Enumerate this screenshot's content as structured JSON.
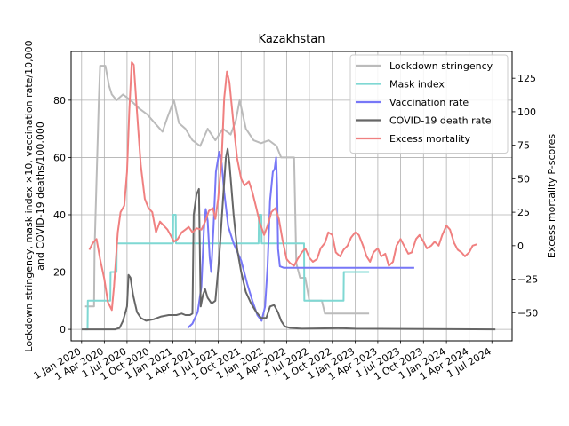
{
  "chart_data": {
    "type": "line",
    "title": "Kazakhstan",
    "ylabel_left": "Lockdown stringency, mask index ×10, vaccination rate/10,000\nand COVID-19 deaths/100,000",
    "ylabel_right": "Excess mortality P-scores",
    "ylim_left": [
      -4,
      97
    ],
    "ylim_right": [
      -71,
      145
    ],
    "yticks_left": [
      0,
      20,
      40,
      60,
      80
    ],
    "yticks_right": [
      -50,
      -25,
      0,
      25,
      50,
      75,
      100,
      125
    ],
    "ytick_labels_right": [
      "−50",
      "−25",
      "0",
      "25",
      "50",
      "75",
      "100",
      "125"
    ],
    "xlim": [
      "2019-11-20",
      "2024-09-20"
    ],
    "x_ticks": [
      {
        "date": "2020-01-01",
        "label": "1 Jan 2020"
      },
      {
        "date": "2020-04-01",
        "label": "1 Apr 2020"
      },
      {
        "date": "2020-07-01",
        "label": "1 Jul 2020"
      },
      {
        "date": "2020-10-01",
        "label": "1 Oct 2020"
      },
      {
        "date": "2021-01-01",
        "label": "1 Jan 2021"
      },
      {
        "date": "2021-04-01",
        "label": "1 Apr 2021"
      },
      {
        "date": "2021-07-01",
        "label": "1 Jul 2021"
      },
      {
        "date": "2021-10-01",
        "label": "1 Oct 2021"
      },
      {
        "date": "2022-01-01",
        "label": "1 Jan 2022"
      },
      {
        "date": "2022-04-01",
        "label": "1 Apr 2022"
      },
      {
        "date": "2022-07-01",
        "label": "1 Jul 2022"
      },
      {
        "date": "2022-10-01",
        "label": "1 Oct 2022"
      },
      {
        "date": "2023-01-01",
        "label": "1 Jan 2023"
      },
      {
        "date": "2023-04-01",
        "label": "1 Apr 2023"
      },
      {
        "date": "2023-07-01",
        "label": "1 Jul 2023"
      },
      {
        "date": "2023-10-01",
        "label": "1 Oct 2023"
      },
      {
        "date": "2024-01-01",
        "label": "1 Jan 2024"
      },
      {
        "date": "2024-04-01",
        "label": "1 Apr 2024"
      },
      {
        "date": "2024-07-01",
        "label": "1 Jul 2024"
      }
    ],
    "grid": true,
    "legend_position": "top-right",
    "series": [
      {
        "name": "Lockdown stringency",
        "axis": "left",
        "color": "#bbbbbb",
        "points": [
          [
            "2020-01-15",
            8
          ],
          [
            "2020-02-20",
            8
          ],
          [
            "2020-02-22",
            28
          ],
          [
            "2020-03-10",
            80
          ],
          [
            "2020-03-15",
            92
          ],
          [
            "2020-04-05",
            92
          ],
          [
            "2020-04-20",
            85
          ],
          [
            "2020-05-01",
            82
          ],
          [
            "2020-05-20",
            80
          ],
          [
            "2020-06-15",
            82
          ],
          [
            "2020-07-15",
            80
          ],
          [
            "2020-08-20",
            77
          ],
          [
            "2020-09-20",
            75
          ],
          [
            "2020-10-20",
            72
          ],
          [
            "2020-11-20",
            69
          ],
          [
            "2020-12-10",
            74
          ],
          [
            "2021-01-05",
            80
          ],
          [
            "2021-01-25",
            72
          ],
          [
            "2021-02-20",
            70
          ],
          [
            "2021-03-20",
            66
          ],
          [
            "2021-04-20",
            64
          ],
          [
            "2021-05-20",
            70
          ],
          [
            "2021-06-20",
            66
          ],
          [
            "2021-07-20",
            70
          ],
          [
            "2021-08-20",
            68
          ],
          [
            "2021-09-10",
            73
          ],
          [
            "2021-09-25",
            80
          ],
          [
            "2021-10-20",
            70
          ],
          [
            "2021-11-20",
            66
          ],
          [
            "2021-12-20",
            65
          ],
          [
            "2022-01-20",
            66
          ],
          [
            "2022-02-20",
            64
          ],
          [
            "2022-03-10",
            60
          ],
          [
            "2022-04-15",
            60
          ],
          [
            "2022-05-01",
            60
          ],
          [
            "2022-05-10",
            23
          ],
          [
            "2022-05-25",
            18
          ],
          [
            "2022-06-15",
            18
          ],
          [
            "2022-07-01",
            10
          ],
          [
            "2022-08-20",
            10
          ],
          [
            "2022-09-01",
            5.5
          ],
          [
            "2023-02-25",
            5.5
          ]
        ]
      },
      {
        "name": "Mask index",
        "axis": "left",
        "color": "#7fd8d3",
        "points": [
          [
            "2020-01-15",
            0
          ],
          [
            "2020-01-25",
            0
          ],
          [
            "2020-01-26",
            10
          ],
          [
            "2020-04-25",
            10
          ],
          [
            "2020-04-26",
            20
          ],
          [
            "2020-05-20",
            20
          ],
          [
            "2020-05-21",
            30
          ],
          [
            "2021-01-01",
            30
          ],
          [
            "2021-01-02",
            40
          ],
          [
            "2021-01-12",
            40
          ],
          [
            "2021-01-13",
            30
          ],
          [
            "2021-12-10",
            30
          ],
          [
            "2021-12-11",
            40
          ],
          [
            "2021-12-21",
            40
          ],
          [
            "2021-12-22",
            30
          ],
          [
            "2022-06-10",
            30
          ],
          [
            "2022-06-11",
            10
          ],
          [
            "2022-11-15",
            10
          ],
          [
            "2022-11-16",
            20
          ],
          [
            "2023-02-25",
            20
          ]
        ]
      },
      {
        "name": "Vaccination rate",
        "axis": "left",
        "color": "#7777f7",
        "points": [
          [
            "2021-03-01",
            0.5
          ],
          [
            "2021-03-20",
            2
          ],
          [
            "2021-04-10",
            6
          ],
          [
            "2021-04-25",
            15
          ],
          [
            "2021-05-05",
            35
          ],
          [
            "2021-05-12",
            42
          ],
          [
            "2021-05-20",
            38
          ],
          [
            "2021-05-28",
            25
          ],
          [
            "2021-06-03",
            20
          ],
          [
            "2021-06-12",
            35
          ],
          [
            "2021-06-22",
            55
          ],
          [
            "2021-07-05",
            62
          ],
          [
            "2021-07-15",
            58
          ],
          [
            "2021-07-25",
            48
          ],
          [
            "2021-08-10",
            36
          ],
          [
            "2021-09-01",
            30
          ],
          [
            "2021-10-01",
            24
          ],
          [
            "2021-10-25",
            16
          ],
          [
            "2021-11-15",
            10
          ],
          [
            "2021-12-05",
            5
          ],
          [
            "2021-12-22",
            3
          ],
          [
            "2022-01-05",
            8
          ],
          [
            "2022-01-15",
            22
          ],
          [
            "2022-01-25",
            45
          ],
          [
            "2022-02-05",
            55
          ],
          [
            "2022-02-12",
            56
          ],
          [
            "2022-02-18",
            60
          ],
          [
            "2022-02-22",
            50
          ],
          [
            "2022-02-26",
            28
          ],
          [
            "2022-03-05",
            22
          ],
          [
            "2022-03-20",
            21.5
          ],
          [
            "2023-08-25",
            21.5
          ]
        ]
      },
      {
        "name": "COVID-19 death rate",
        "axis": "left",
        "color": "#666666",
        "points": [
          [
            "2020-01-01",
            0
          ],
          [
            "2020-05-15",
            0
          ],
          [
            "2020-06-01",
            0.5
          ],
          [
            "2020-06-15",
            3
          ],
          [
            "2020-06-25",
            6
          ],
          [
            "2020-07-01",
            8
          ],
          [
            "2020-07-07",
            19
          ],
          [
            "2020-07-15",
            18
          ],
          [
            "2020-07-25",
            12
          ],
          [
            "2020-08-10",
            6
          ],
          [
            "2020-08-25",
            4
          ],
          [
            "2020-09-15",
            3
          ],
          [
            "2020-10-15",
            3.5
          ],
          [
            "2020-11-15",
            4.5
          ],
          [
            "2020-12-15",
            5
          ],
          [
            "2021-01-15",
            5
          ],
          [
            "2021-02-05",
            5.5
          ],
          [
            "2021-02-20",
            5
          ],
          [
            "2021-03-10",
            5
          ],
          [
            "2021-03-20",
            5.5
          ],
          [
            "2021-03-25",
            40
          ],
          [
            "2021-04-05",
            47
          ],
          [
            "2021-04-15",
            49
          ],
          [
            "2021-04-22",
            8
          ],
          [
            "2021-05-01",
            12
          ],
          [
            "2021-05-10",
            14
          ],
          [
            "2021-05-20",
            11
          ],
          [
            "2021-06-05",
            9
          ],
          [
            "2021-06-20",
            10
          ],
          [
            "2021-07-05",
            25
          ],
          [
            "2021-07-20",
            45
          ],
          [
            "2021-08-01",
            60
          ],
          [
            "2021-08-08",
            63
          ],
          [
            "2021-08-15",
            58
          ],
          [
            "2021-09-01",
            40
          ],
          [
            "2021-09-15",
            28
          ],
          [
            "2021-10-01",
            20
          ],
          [
            "2021-10-20",
            13
          ],
          [
            "2021-11-10",
            9
          ],
          [
            "2021-12-01",
            6
          ],
          [
            "2021-12-20",
            4
          ],
          [
            "2022-01-10",
            4
          ],
          [
            "2022-01-25",
            8
          ],
          [
            "2022-02-10",
            8.5
          ],
          [
            "2022-02-25",
            6
          ],
          [
            "2022-03-10",
            3
          ],
          [
            "2022-03-25",
            1
          ],
          [
            "2022-04-15",
            0.5
          ],
          [
            "2022-06-01",
            0.2
          ],
          [
            "2022-11-01",
            0.4
          ],
          [
            "2023-01-01",
            0.2
          ],
          [
            "2024-07-15",
            0
          ]
        ]
      },
      {
        "name": "Excess mortality",
        "axis": "right",
        "color": "#f08080",
        "points": [
          [
            "2020-02-01",
            -3
          ],
          [
            "2020-02-15",
            2
          ],
          [
            "2020-03-01",
            5
          ],
          [
            "2020-03-15",
            -10
          ],
          [
            "2020-04-01",
            -25
          ],
          [
            "2020-04-15",
            -42
          ],
          [
            "2020-05-01",
            -48
          ],
          [
            "2020-05-10",
            -30
          ],
          [
            "2020-05-25",
            10
          ],
          [
            "2020-06-05",
            25
          ],
          [
            "2020-06-20",
            30
          ],
          [
            "2020-07-01",
            55
          ],
          [
            "2020-07-10",
            100
          ],
          [
            "2020-07-20",
            137
          ],
          [
            "2020-07-28",
            135
          ],
          [
            "2020-08-10",
            100
          ],
          [
            "2020-08-25",
            60
          ],
          [
            "2020-09-10",
            35
          ],
          [
            "2020-09-25",
            28
          ],
          [
            "2020-10-10",
            25
          ],
          [
            "2020-10-25",
            10
          ],
          [
            "2020-11-10",
            18
          ],
          [
            "2020-11-25",
            15
          ],
          [
            "2020-12-10",
            12
          ],
          [
            "2020-12-25",
            7
          ],
          [
            "2021-01-05",
            3
          ],
          [
            "2021-01-20",
            5
          ],
          [
            "2021-02-05",
            10
          ],
          [
            "2021-02-20",
            12
          ],
          [
            "2021-03-05",
            14
          ],
          [
            "2021-03-20",
            10
          ],
          [
            "2021-04-05",
            13
          ],
          [
            "2021-04-25",
            12
          ],
          [
            "2021-05-10",
            18
          ],
          [
            "2021-05-25",
            26
          ],
          [
            "2021-06-10",
            28
          ],
          [
            "2021-06-20",
            20
          ],
          [
            "2021-07-01",
            35
          ],
          [
            "2021-07-15",
            65
          ],
          [
            "2021-07-25",
            110
          ],
          [
            "2021-08-05",
            130
          ],
          [
            "2021-08-15",
            122
          ],
          [
            "2021-09-01",
            90
          ],
          [
            "2021-09-15",
            65
          ],
          [
            "2021-10-01",
            50
          ],
          [
            "2021-10-15",
            45
          ],
          [
            "2021-11-01",
            48
          ],
          [
            "2021-11-15",
            40
          ],
          [
            "2021-12-01",
            28
          ],
          [
            "2021-12-15",
            17
          ],
          [
            "2022-01-01",
            8
          ],
          [
            "2022-01-15",
            15
          ],
          [
            "2022-01-30",
            25
          ],
          [
            "2022-02-15",
            28
          ],
          [
            "2022-03-01",
            20
          ],
          [
            "2022-03-15",
            5
          ],
          [
            "2022-04-01",
            -10
          ],
          [
            "2022-04-15",
            -13
          ],
          [
            "2022-05-01",
            -15
          ],
          [
            "2022-05-15",
            -10
          ],
          [
            "2022-06-01",
            -5
          ],
          [
            "2022-06-15",
            -2
          ],
          [
            "2022-07-01",
            -9
          ],
          [
            "2022-07-15",
            -12
          ],
          [
            "2022-08-01",
            -10
          ],
          [
            "2022-08-15",
            -2
          ],
          [
            "2022-09-01",
            2
          ],
          [
            "2022-09-15",
            10
          ],
          [
            "2022-10-01",
            8
          ],
          [
            "2022-10-15",
            -5
          ],
          [
            "2022-11-01",
            -8
          ],
          [
            "2022-11-15",
            -3
          ],
          [
            "2022-12-01",
            0
          ],
          [
            "2022-12-15",
            6
          ],
          [
            "2023-01-01",
            10
          ],
          [
            "2023-01-15",
            8
          ],
          [
            "2023-02-01",
            0
          ],
          [
            "2023-02-15",
            -8
          ],
          [
            "2023-03-01",
            -12
          ],
          [
            "2023-03-15",
            -5
          ],
          [
            "2023-04-01",
            -2
          ],
          [
            "2023-04-15",
            -8
          ],
          [
            "2023-05-01",
            -6
          ],
          [
            "2023-05-15",
            -15
          ],
          [
            "2023-06-01",
            -12
          ],
          [
            "2023-06-15",
            0
          ],
          [
            "2023-07-01",
            5
          ],
          [
            "2023-07-15",
            0
          ],
          [
            "2023-08-01",
            -6
          ],
          [
            "2023-08-15",
            -5
          ],
          [
            "2023-09-01",
            5
          ],
          [
            "2023-09-15",
            8
          ],
          [
            "2023-10-01",
            3
          ],
          [
            "2023-10-15",
            -2
          ],
          [
            "2023-11-01",
            0
          ],
          [
            "2023-11-15",
            3
          ],
          [
            "2023-12-01",
            0
          ],
          [
            "2023-12-15",
            8
          ],
          [
            "2024-01-01",
            15
          ],
          [
            "2024-01-15",
            12
          ],
          [
            "2024-02-01",
            2
          ],
          [
            "2024-02-15",
            -3
          ],
          [
            "2024-03-01",
            -5
          ],
          [
            "2024-03-15",
            -8
          ],
          [
            "2024-04-01",
            -5
          ],
          [
            "2024-04-15",
            0
          ],
          [
            "2024-05-01",
            1
          ]
        ]
      }
    ]
  }
}
